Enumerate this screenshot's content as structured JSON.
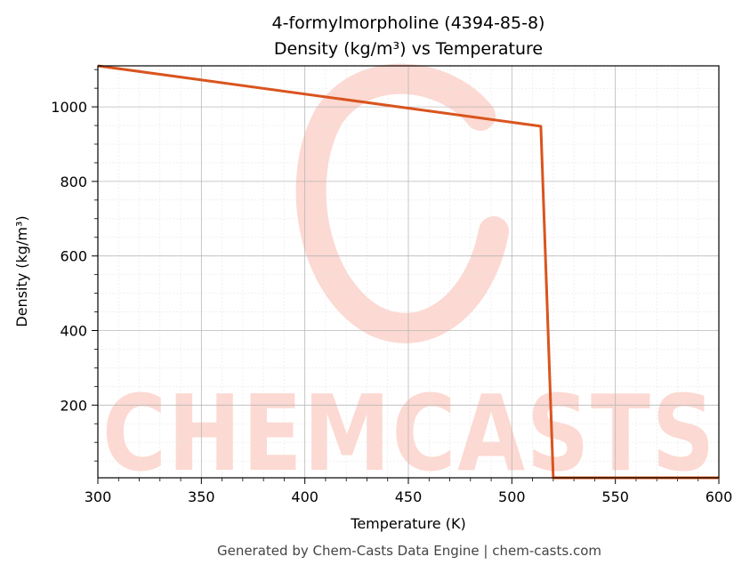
{
  "chart_data": {
    "type": "line",
    "title": "4-formylmorpholine (4394-85-8)",
    "subtitle": "Density (kg/m³) vs Temperature",
    "xlabel": "Temperature (K)",
    "ylabel": "Density (kg/m³)",
    "xlim": [
      300,
      600
    ],
    "ylim": [
      5,
      1110
    ],
    "xticks": [
      300,
      350,
      400,
      450,
      500,
      550,
      600
    ],
    "yticks": [
      200,
      400,
      600,
      800,
      1000
    ],
    "grid": true,
    "series": [
      {
        "color": "#d9541e",
        "x": [
          300,
          514,
          520,
          600
        ],
        "y": [
          1110,
          948,
          5,
          5
        ]
      }
    ]
  },
  "watermark": {
    "text": "CHEMCASTS",
    "color": "#fcd9d2"
  },
  "footer": "Generated by Chem-Casts Data Engine | chem-casts.com"
}
